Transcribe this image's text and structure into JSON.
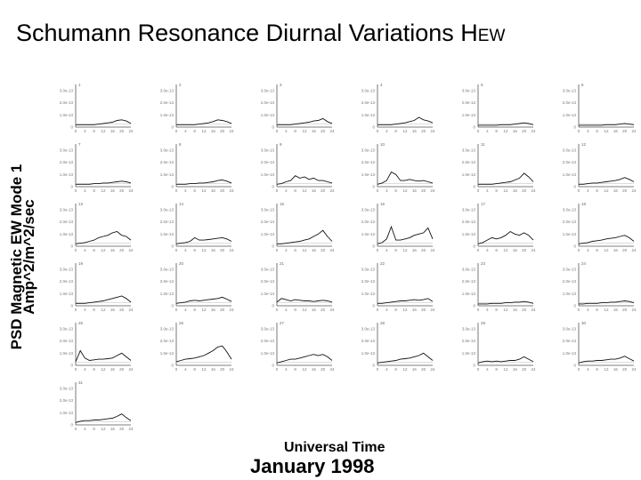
{
  "title": {
    "main": "Schumann Resonance Diurnal Variations H",
    "sub": "EW"
  },
  "chart_data": {
    "type": "line",
    "title": "Schumann Resonance Diurnal Variations HEW",
    "ylabel_line1": "PSD Magnetic EW Mode 1",
    "ylabel_line2": "Amp^2/m^2/sec",
    "xlabel_line1": "Universal Time",
    "xlabel_line2": "January 1998",
    "x_ticks": [
      "0",
      "4",
      "8",
      "12",
      "16",
      "20",
      "24"
    ],
    "y_ticks": [
      "3.0e-13",
      "2.0e-13",
      "1.0e-13",
      "0"
    ],
    "xlim": [
      0,
      24
    ],
    "ylim": [
      0,
      3.5e-13
    ],
    "x_hours": [
      0,
      2,
      4,
      6,
      8,
      10,
      12,
      14,
      16,
      18,
      20,
      22,
      24
    ],
    "panels": [
      {
        "day": "1",
        "values": [
          0.2,
          0.2,
          0.2,
          0.2,
          0.2,
          0.25,
          0.3,
          0.35,
          0.4,
          0.55,
          0.6,
          0.5,
          0.3
        ]
      },
      {
        "day": "2",
        "values": [
          0.2,
          0.2,
          0.2,
          0.2,
          0.2,
          0.25,
          0.3,
          0.35,
          0.45,
          0.6,
          0.55,
          0.45,
          0.3
        ]
      },
      {
        "day": "3",
        "values": [
          0.2,
          0.2,
          0.2,
          0.2,
          0.25,
          0.3,
          0.35,
          0.4,
          0.5,
          0.55,
          0.7,
          0.45,
          0.3
        ]
      },
      {
        "day": "4",
        "values": [
          0.2,
          0.2,
          0.2,
          0.2,
          0.25,
          0.3,
          0.35,
          0.45,
          0.55,
          0.8,
          0.6,
          0.5,
          0.35
        ]
      },
      {
        "day": "5",
        "values": [
          0.15,
          0.15,
          0.15,
          0.15,
          0.15,
          0.2,
          0.2,
          0.2,
          0.25,
          0.3,
          0.35,
          0.3,
          0.2
        ]
      },
      {
        "day": "6",
        "values": [
          0.15,
          0.15,
          0.15,
          0.15,
          0.15,
          0.15,
          0.2,
          0.2,
          0.2,
          0.25,
          0.3,
          0.25,
          0.2
        ]
      },
      {
        "day": "7",
        "values": [
          0.2,
          0.2,
          0.2,
          0.2,
          0.25,
          0.25,
          0.3,
          0.3,
          0.35,
          0.4,
          0.45,
          0.4,
          0.3
        ]
      },
      {
        "day": "8",
        "values": [
          0.2,
          0.2,
          0.2,
          0.25,
          0.25,
          0.3,
          0.3,
          0.35,
          0.4,
          0.5,
          0.55,
          0.45,
          0.3
        ]
      },
      {
        "day": "9",
        "values": [
          0.2,
          0.25,
          0.4,
          0.5,
          0.9,
          0.7,
          0.8,
          0.6,
          0.7,
          0.5,
          0.5,
          0.4,
          0.3
        ]
      },
      {
        "day": "10",
        "values": [
          0.2,
          0.3,
          0.5,
          1.2,
          1.0,
          0.5,
          0.5,
          0.6,
          0.5,
          0.45,
          0.5,
          0.4,
          0.3
        ]
      },
      {
        "day": "11",
        "values": [
          0.2,
          0.2,
          0.2,
          0.2,
          0.25,
          0.3,
          0.35,
          0.4,
          0.55,
          0.7,
          1.1,
          0.8,
          0.4
        ]
      },
      {
        "day": "12",
        "values": [
          0.2,
          0.2,
          0.25,
          0.3,
          0.3,
          0.35,
          0.4,
          0.45,
          0.5,
          0.6,
          0.75,
          0.6,
          0.4
        ]
      },
      {
        "day": "13",
        "values": [
          0.2,
          0.25,
          0.3,
          0.4,
          0.5,
          0.7,
          0.8,
          0.9,
          1.1,
          1.2,
          0.9,
          0.8,
          0.5
        ]
      },
      {
        "day": "14",
        "values": [
          0.2,
          0.25,
          0.3,
          0.4,
          0.7,
          0.5,
          0.5,
          0.55,
          0.6,
          0.65,
          0.7,
          0.6,
          0.4
        ]
      },
      {
        "day": "15",
        "values": [
          0.2,
          0.2,
          0.25,
          0.3,
          0.35,
          0.4,
          0.5,
          0.6,
          0.8,
          1.0,
          1.3,
          0.8,
          0.4
        ]
      },
      {
        "day": "16",
        "values": [
          0.2,
          0.3,
          0.6,
          1.6,
          0.5,
          0.5,
          0.6,
          0.7,
          0.9,
          1.0,
          1.1,
          1.5,
          0.6
        ]
      },
      {
        "day": "17",
        "values": [
          0.2,
          0.3,
          0.5,
          0.7,
          0.6,
          0.7,
          0.9,
          1.2,
          1.0,
          0.9,
          1.1,
          0.9,
          0.5
        ]
      },
      {
        "day": "18",
        "values": [
          0.2,
          0.25,
          0.3,
          0.4,
          0.45,
          0.5,
          0.6,
          0.65,
          0.7,
          0.8,
          0.9,
          0.7,
          0.4
        ]
      },
      {
        "day": "19",
        "values": [
          0.2,
          0.2,
          0.2,
          0.25,
          0.3,
          0.35,
          0.4,
          0.5,
          0.6,
          0.7,
          0.8,
          0.6,
          0.3
        ]
      },
      {
        "day": "20",
        "values": [
          0.2,
          0.25,
          0.3,
          0.4,
          0.45,
          0.4,
          0.45,
          0.5,
          0.55,
          0.6,
          0.7,
          0.55,
          0.35
        ]
      },
      {
        "day": "21",
        "values": [
          0.3,
          0.6,
          0.5,
          0.4,
          0.5,
          0.45,
          0.4,
          0.4,
          0.35,
          0.4,
          0.45,
          0.4,
          0.3
        ]
      },
      {
        "day": "22",
        "values": [
          0.2,
          0.2,
          0.25,
          0.3,
          0.35,
          0.4,
          0.4,
          0.45,
          0.5,
          0.45,
          0.5,
          0.6,
          0.35
        ]
      },
      {
        "day": "23",
        "values": [
          0.15,
          0.15,
          0.15,
          0.2,
          0.2,
          0.2,
          0.25,
          0.25,
          0.3,
          0.3,
          0.35,
          0.3,
          0.2
        ]
      },
      {
        "day": "24",
        "values": [
          0.15,
          0.15,
          0.2,
          0.2,
          0.2,
          0.25,
          0.25,
          0.3,
          0.3,
          0.35,
          0.4,
          0.35,
          0.25
        ]
      },
      {
        "day": "25",
        "values": [
          0.3,
          1.2,
          0.6,
          0.4,
          0.45,
          0.5,
          0.5,
          0.55,
          0.6,
          0.8,
          1.0,
          0.7,
          0.4
        ]
      },
      {
        "day": "26",
        "values": [
          0.3,
          0.4,
          0.5,
          0.55,
          0.6,
          0.7,
          0.8,
          1.0,
          1.2,
          1.5,
          1.6,
          1.1,
          0.5
        ]
      },
      {
        "day": "27",
        "values": [
          0.2,
          0.3,
          0.4,
          0.5,
          0.5,
          0.6,
          0.7,
          0.8,
          0.9,
          0.8,
          0.9,
          0.7,
          0.4
        ]
      },
      {
        "day": "28",
        "values": [
          0.2,
          0.25,
          0.3,
          0.35,
          0.4,
          0.5,
          0.55,
          0.6,
          0.7,
          0.8,
          1.0,
          0.7,
          0.4
        ]
      },
      {
        "day": "29",
        "values": [
          0.2,
          0.3,
          0.35,
          0.3,
          0.35,
          0.3,
          0.35,
          0.4,
          0.4,
          0.5,
          0.7,
          0.5,
          0.3
        ]
      },
      {
        "day": "30",
        "values": [
          0.2,
          0.3,
          0.35,
          0.35,
          0.4,
          0.4,
          0.45,
          0.5,
          0.5,
          0.6,
          0.75,
          0.55,
          0.35
        ]
      },
      {
        "day": "31",
        "values": [
          0.2,
          0.3,
          0.35,
          0.35,
          0.4,
          0.4,
          0.45,
          0.5,
          0.55,
          0.7,
          0.9,
          0.6,
          0.35
        ]
      }
    ]
  }
}
